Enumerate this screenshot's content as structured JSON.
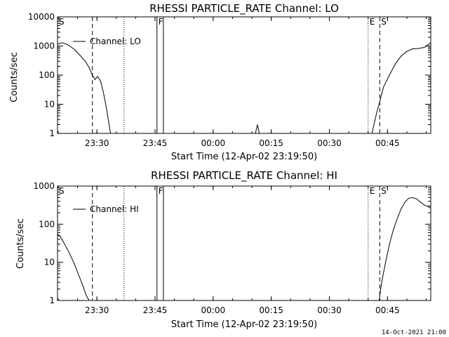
{
  "footer_timestamp": "14-Oct-2021 21:00",
  "chart_data": [
    {
      "type": "line",
      "title": "RHESSI PARTICLE_RATE Channel: LO",
      "xlabel": "Start Time (12-Apr-02 23:19:50)",
      "ylabel": "Counts/sec",
      "xlim": [
        "23:19:50",
        "00:56:10"
      ],
      "ylim": [
        1,
        10000
      ],
      "yscale": "log",
      "xticks": [
        "23:30",
        "23:45",
        "00:00",
        "00:15",
        "00:30",
        "00:45"
      ],
      "yticks": [
        "1",
        "10",
        "100",
        "1000",
        "10000"
      ],
      "legend": {
        "placement": "top-left",
        "entries": [
          "Channel: LO"
        ]
      },
      "markers": [
        {
          "label": "S",
          "time": "23:19:50",
          "style": "solid"
        },
        {
          "label": "",
          "time": "23:28:50",
          "style": "dashed"
        },
        {
          "label": "",
          "time": "23:37:00",
          "style": "dotted"
        },
        {
          "label": "F",
          "time": "23:45:30",
          "style": "solid"
        },
        {
          "label": "",
          "time": "23:47:10",
          "style": "solid"
        },
        {
          "label": "E",
          "time": "00:40:00",
          "style": "dotted"
        },
        {
          "label": "S'",
          "time": "00:43:00",
          "style": "dashed"
        },
        {
          "label": "",
          "time": "00:56:10",
          "style": "dashdot"
        }
      ],
      "series": [
        {
          "name": "Channel: LO",
          "segments": [
            {
              "t": [
                "23:19:50",
                "23:21:00",
                "23:22:30",
                "23:24:00",
                "23:25:30",
                "23:27:00",
                "23:28:00",
                "23:28:50",
                "23:29:30",
                "23:30:10",
                "23:31:00",
                "23:31:50",
                "23:32:40",
                "23:33:30"
              ],
              "v": [
                1150,
                1300,
                1100,
                800,
                500,
                300,
                180,
                100,
                70,
                90,
                60,
                20,
                5,
                1
              ]
            },
            {
              "t": [
                "00:10:55",
                "00:11:25",
                "00:11:55"
              ],
              "v": [
                1,
                2,
                1
              ]
            },
            {
              "t": [
                "00:41:00",
                "00:41:40",
                "00:42:20",
                "00:42:50",
                "00:43:20",
                "00:44:00",
                "00:45:30",
                "00:47:00",
                "00:48:30",
                "00:50:00",
                "00:51:30",
                "00:53:00",
                "00:54:30",
                "00:55:30",
                "00:56:10"
              ],
              "v": [
                1,
                2.5,
                6,
                10,
                18,
                40,
                100,
                240,
                450,
                650,
                800,
                820,
                900,
                1100,
                1300
              ]
            }
          ]
        }
      ]
    },
    {
      "type": "line",
      "title": "RHESSI PARTICLE_RATE Channel: HI",
      "xlabel": "Start Time (12-Apr-02 23:19:50)",
      "ylabel": "Counts/sec",
      "xlim": [
        "23:19:50",
        "00:56:10"
      ],
      "ylim": [
        1,
        1000
      ],
      "yscale": "log",
      "xticks": [
        "23:30",
        "23:45",
        "00:00",
        "00:15",
        "00:30",
        "00:45"
      ],
      "yticks": [
        "1",
        "10",
        "100",
        "1000"
      ],
      "legend": {
        "placement": "top-left",
        "entries": [
          "Channel: HI"
        ]
      },
      "markers": [
        {
          "label": "S",
          "time": "23:19:50",
          "style": "solid"
        },
        {
          "label": "",
          "time": "23:28:50",
          "style": "dashed"
        },
        {
          "label": "",
          "time": "23:37:00",
          "style": "dotted"
        },
        {
          "label": "F",
          "time": "23:45:30",
          "style": "solid"
        },
        {
          "label": "",
          "time": "23:47:10",
          "style": "solid"
        },
        {
          "label": "E",
          "time": "00:40:00",
          "style": "dotted"
        },
        {
          "label": "S'",
          "time": "00:43:00",
          "style": "dashed"
        },
        {
          "label": "",
          "time": "00:56:10",
          "style": "dashdot"
        }
      ],
      "series": [
        {
          "name": "Channel: HI",
          "segments": [
            {
              "t": [
                "23:19:50",
                "23:20:40",
                "23:21:40",
                "23:22:50",
                "23:24:00",
                "23:25:10",
                "23:26:20",
                "23:27:20",
                "23:28:00"
              ],
              "v": [
                55,
                45,
                30,
                18,
                10,
                5,
                2.5,
                1.3,
                1
              ]
            },
            {
              "t": [
                "00:42:50",
                "00:43:30",
                "00:44:30",
                "00:45:30",
                "00:46:30",
                "00:47:30",
                "00:48:30",
                "00:49:30",
                "00:50:30",
                "00:51:30",
                "00:52:30",
                "00:53:30",
                "00:54:30",
                "00:55:30",
                "00:56:10"
              ],
              "v": [
                1,
                3,
                10,
                30,
                70,
                140,
                250,
                380,
                480,
                500,
                460,
                380,
                320,
                290,
                260
              ]
            }
          ]
        }
      ]
    }
  ]
}
